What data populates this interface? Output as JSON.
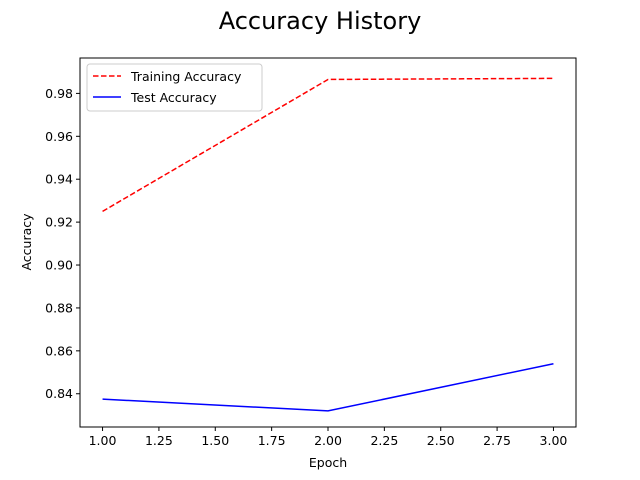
{
  "chart_data": {
    "type": "line",
    "title": "Accuracy History",
    "xlabel": "Epoch",
    "ylabel": "Accuracy",
    "x": [
      1.0,
      2.0,
      3.0
    ],
    "xlim": [
      0.9,
      3.1
    ],
    "ylim": [
      0.8245,
      0.9965
    ],
    "xticks": [
      "1.00",
      "1.25",
      "1.50",
      "1.75",
      "2.00",
      "2.25",
      "2.50",
      "2.75",
      "3.00"
    ],
    "yticks": [
      "0.84",
      "0.86",
      "0.88",
      "0.90",
      "0.92",
      "0.94",
      "0.96",
      "0.98"
    ],
    "grid": false,
    "legend_position": "upper-left",
    "series": [
      {
        "name": "Training Accuracy",
        "values": [
          0.925,
          0.9865,
          0.987
        ],
        "color": "#ff0000",
        "style": "dashed"
      },
      {
        "name": "Test Accuracy",
        "values": [
          0.8375,
          0.832,
          0.854
        ],
        "color": "#0000ff",
        "style": "solid"
      }
    ]
  }
}
